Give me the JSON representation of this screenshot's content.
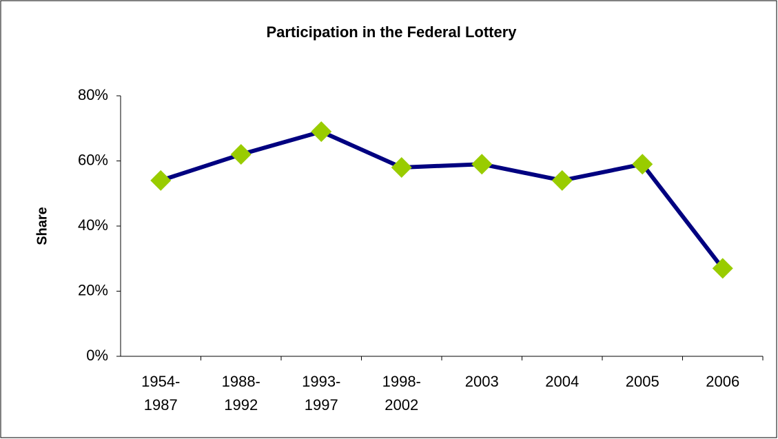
{
  "chart_data": {
    "type": "line",
    "title": "Participation in the Federal Lottery",
    "y_label": "Share",
    "categories": [
      "1954-1987",
      "1988-1992",
      "1993-1997",
      "1998-2002",
      "2003",
      "2004",
      "2005",
      "2006"
    ],
    "series": [
      {
        "name": "Share",
        "line_color": "#000080",
        "marker_color": "#99cc00",
        "values": [
          54,
          62,
          69,
          58,
          59,
          54,
          59,
          27
        ]
      }
    ],
    "ylim": [
      0,
      80
    ],
    "yticks": [
      {
        "value": 0,
        "label": "0%"
      },
      {
        "value": 20,
        "label": "20%"
      },
      {
        "value": 40,
        "label": "40%"
      },
      {
        "value": 60,
        "label": "60%"
      },
      {
        "value": 80,
        "label": "80%"
      }
    ],
    "grid": false
  }
}
